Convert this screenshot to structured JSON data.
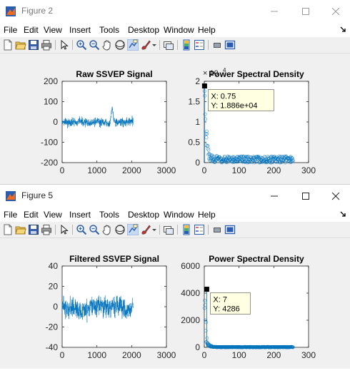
{
  "windows": [
    {
      "title": "Figure 2",
      "menu": [
        "File",
        "Edit",
        "View",
        "Insert",
        "Tools",
        "Desktop",
        "Window",
        "Help"
      ],
      "charts": [
        {
          "type": "line",
          "title": "Raw SSVEP Signal",
          "xlim": [
            0,
            3000
          ],
          "ylim": [
            -200,
            200
          ],
          "xticks": [
            "0",
            "1000",
            "2000",
            "3000"
          ],
          "yticks": [
            "200",
            "100",
            "0",
            "-100",
            "-200"
          ],
          "color": "#0072bd"
        },
        {
          "type": "scatter",
          "title": "Power Spectral Density",
          "exponent": "× 10",
          "exponent_power": "4",
          "xlim": [
            0,
            300
          ],
          "ylim": [
            0,
            2
          ],
          "xticks": [
            "0",
            "100",
            "200",
            "300"
          ],
          "yticks": [
            "2",
            "1.5",
            "1",
            "0.5",
            "0"
          ],
          "color": "#0072bd",
          "datatip": {
            "x_label": "X: 0.75",
            "y_label": "Y: 1.886e+04"
          }
        }
      ]
    },
    {
      "title": "Figure 5",
      "menu": [
        "File",
        "Edit",
        "View",
        "Insert",
        "Tools",
        "Desktop",
        "Window",
        "Help"
      ],
      "charts": [
        {
          "type": "line",
          "title": "Filtered SSVEP Signal",
          "xlim": [
            0,
            3000
          ],
          "ylim": [
            -40,
            40
          ],
          "xticks": [
            "0",
            "1000",
            "2000",
            "3000"
          ],
          "yticks": [
            "40",
            "20",
            "0",
            "-20",
            "-40"
          ],
          "color": "#0072bd"
        },
        {
          "type": "scatter",
          "title": "Power Spectral Density",
          "xlim": [
            0,
            300
          ],
          "ylim": [
            0,
            6000
          ],
          "xticks": [
            "0",
            "100",
            "200",
            "300"
          ],
          "yticks": [
            "6000",
            "4000",
            "2000",
            "0"
          ],
          "color": "#0072bd",
          "datatip": {
            "x_label": "X: 7",
            "y_label": "Y: 4286"
          }
        }
      ]
    }
  ]
}
